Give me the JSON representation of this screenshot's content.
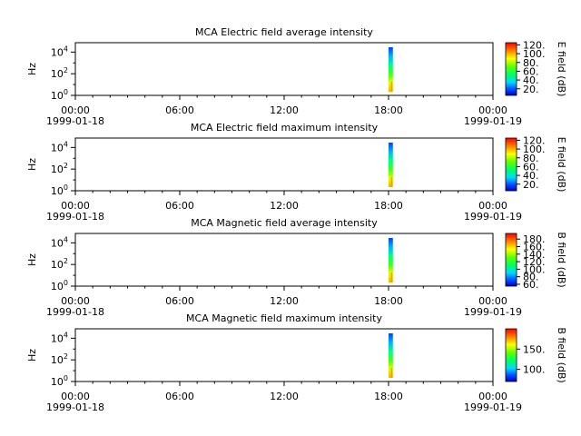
{
  "chart_data": [
    {
      "type": "heatmap",
      "title": "MCA  Electric field average intensity",
      "ylabel": "Hz",
      "y_scale": "log",
      "y_ticks": [
        "10^0",
        "10^2",
        "10^4"
      ],
      "x_ticks": [
        {
          "time": "00:00",
          "date": "1999-01-18"
        },
        {
          "time": "06:00",
          "date": ""
        },
        {
          "time": "12:00",
          "date": ""
        },
        {
          "time": "18:00",
          "date": ""
        },
        {
          "time": "00:00",
          "date": "1999-01-19"
        }
      ],
      "xlim": [
        "1999-01-18 00:00",
        "1999-01-19 00:00"
      ],
      "data_interval": [
        "1999-01-18 18:00",
        "1999-01-18 18:15"
      ],
      "colorbar": {
        "label": "E field (dB)",
        "ticks": [
          "20.",
          "40.",
          "60.",
          "80.",
          "100.",
          "120."
        ],
        "range": [
          5,
          125
        ]
      }
    },
    {
      "type": "heatmap",
      "title": "MCA  Electric field maximum intensity",
      "ylabel": "Hz",
      "y_scale": "log",
      "y_ticks": [
        "10^0",
        "10^2",
        "10^4"
      ],
      "x_ticks": [
        {
          "time": "00:00",
          "date": "1999-01-18"
        },
        {
          "time": "06:00",
          "date": ""
        },
        {
          "time": "12:00",
          "date": ""
        },
        {
          "time": "18:00",
          "date": ""
        },
        {
          "time": "00:00",
          "date": "1999-01-19"
        }
      ],
      "xlim": [
        "1999-01-18 00:00",
        "1999-01-19 00:00"
      ],
      "data_interval": [
        "1999-01-18 18:00",
        "1999-01-18 18:15"
      ],
      "colorbar": {
        "label": "E field (dB)",
        "ticks": [
          "20.",
          "40.",
          "60.",
          "80.",
          "100.",
          "120."
        ],
        "range": [
          5,
          125
        ]
      }
    },
    {
      "type": "heatmap",
      "title": "MCA  Magnetic field average intensity",
      "ylabel": "Hz",
      "y_scale": "log",
      "y_ticks": [
        "10^0",
        "10^2",
        "10^4"
      ],
      "x_ticks": [
        {
          "time": "00:00",
          "date": "1999-01-18"
        },
        {
          "time": "06:00",
          "date": ""
        },
        {
          "time": "12:00",
          "date": ""
        },
        {
          "time": "18:00",
          "date": ""
        },
        {
          "time": "00:00",
          "date": "1999-01-19"
        }
      ],
      "xlim": [
        "1999-01-18 00:00",
        "1999-01-19 00:00"
      ],
      "data_interval": [
        "1999-01-18 18:00",
        "1999-01-18 18:15"
      ],
      "colorbar": {
        "label": "B field (dB)",
        "ticks": [
          "60.",
          "80.",
          "100.",
          "120.",
          "140.",
          "160.",
          "180."
        ],
        "range": [
          55,
          195
        ]
      }
    },
    {
      "type": "heatmap",
      "title": "MCA  Magnetic field maximum intensity",
      "ylabel": "Hz",
      "y_scale": "log",
      "y_ticks": [
        "10^0",
        "10^2",
        "10^4"
      ],
      "x_ticks": [
        {
          "time": "00:00",
          "date": "1999-01-18"
        },
        {
          "time": "06:00",
          "date": ""
        },
        {
          "time": "12:00",
          "date": ""
        },
        {
          "time": "18:00",
          "date": ""
        },
        {
          "time": "00:00",
          "date": "1999-01-19"
        }
      ],
      "xlim": [
        "1999-01-18 00:00",
        "1999-01-19 00:00"
      ],
      "data_interval": [
        "1999-01-18 18:00",
        "1999-01-18 18:15"
      ],
      "colorbar": {
        "label": "B field (dB)",
        "ticks": [
          "100.",
          "150."
        ],
        "range": [
          70,
          200
        ]
      }
    }
  ]
}
